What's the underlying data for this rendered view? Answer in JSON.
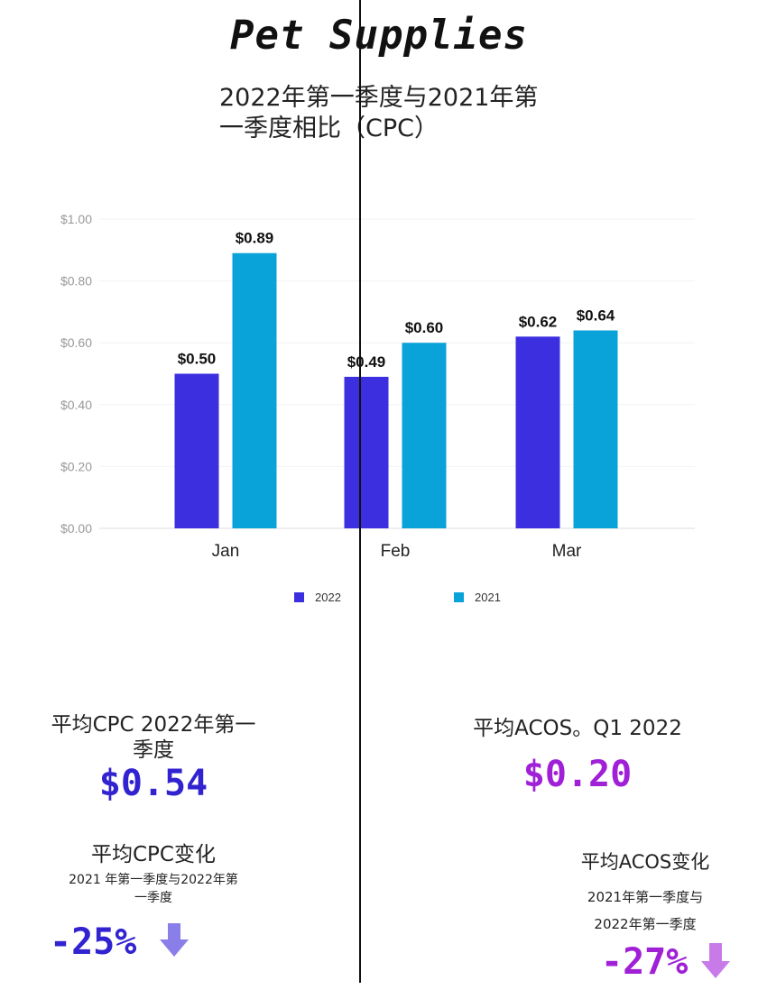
{
  "title": "Pet Supplies",
  "subtitle_line1": "2022年第一季度与2021年第",
  "subtitle_line2": "一季度相比（CPC）",
  "chart_data": {
    "type": "bar",
    "categories": [
      "Jan",
      "Feb",
      "Mar"
    ],
    "series": [
      {
        "name": "2022",
        "values": [
          0.5,
          0.49,
          0.62
        ],
        "labels": [
          "$0.50",
          "$0.49",
          "$0.62"
        ],
        "color": "#3b2fe0"
      },
      {
        "name": "2021",
        "values": [
          0.89,
          0.6,
          0.64
        ],
        "labels": [
          "$0.89",
          "$0.60",
          "$0.64"
        ],
        "color": "#0aa3d9"
      }
    ],
    "ylim": [
      0,
      1.0
    ],
    "yticks": [
      0,
      0.2,
      0.4,
      0.6,
      0.8,
      1.0
    ],
    "ytick_labels": [
      "$0.00",
      "$0.20",
      "$0.40",
      "$0.60",
      "$0.80",
      "$1.00"
    ],
    "grid": true,
    "legend_placement": "bottom"
  },
  "stats": {
    "avg_cpc_label_line1": "平均CPC 2022年第一",
    "avg_cpc_label_line2": "季度",
    "avg_cpc_value": "$0.54",
    "avg_acos_label": "平均ACOS。Q1 2022",
    "avg_acos_value": "$0.20",
    "cpc_change_label": "平均CPC变化",
    "cpc_change_sub_line1": "2021 年第一季度与2022年第",
    "cpc_change_sub_line2": "一季度",
    "cpc_change_value": "-25%",
    "acos_change_label": "平均ACOS变化",
    "acos_change_sub_line1": "2021年第一季度与",
    "acos_change_sub_line2": "2022年第一季度",
    "acos_change_value": "-27%",
    "colors": {
      "cpc": "#3223d0",
      "acos": "#a020d8",
      "cpc_arrow": "#8a7ee8",
      "acos_arrow": "#c77ae8"
    },
    "arrow_icon": "arrow-down-icon"
  }
}
